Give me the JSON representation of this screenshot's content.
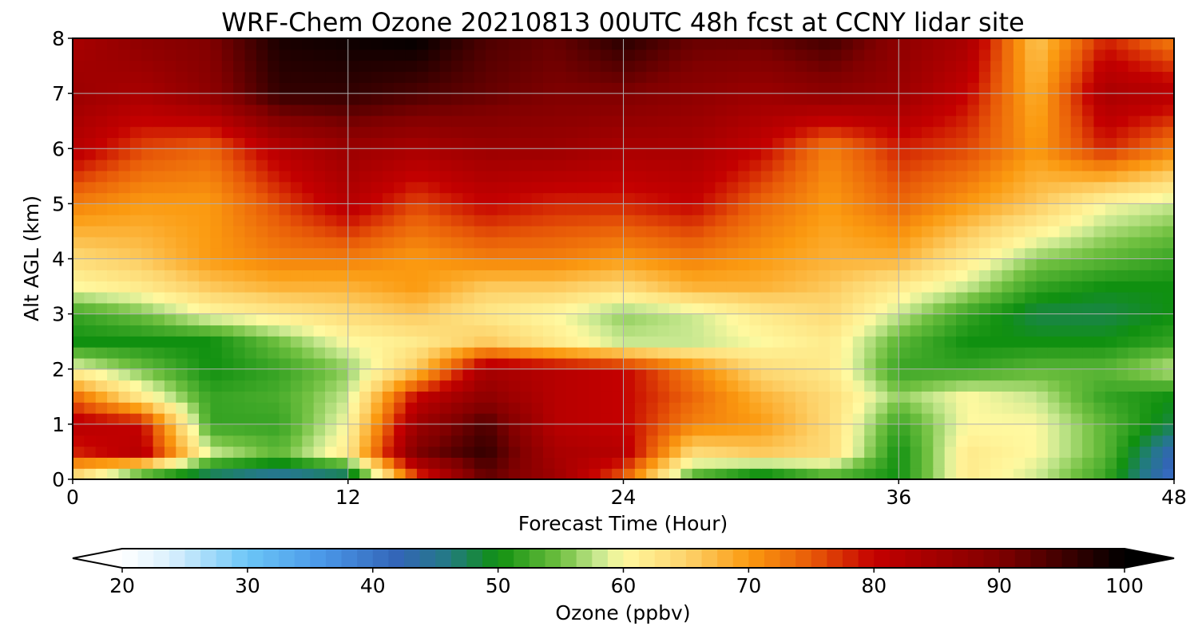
{
  "chart_data": {
    "type": "heatmap",
    "title": "WRF-Chem Ozone  20210813 00UTC 48h fcst at CCNY lidar site",
    "xlabel": "Forecast Time (Hour)",
    "ylabel": "Alt AGL (km)",
    "xlim": [
      0,
      48
    ],
    "ylim": [
      0,
      8
    ],
    "x_ticks": [
      "0",
      "12",
      "24",
      "36",
      "48"
    ],
    "y_ticks": [
      "0",
      "1",
      "2",
      "3",
      "4",
      "5",
      "6",
      "7",
      "8"
    ],
    "grid": true,
    "x": [
      0,
      3,
      6,
      9,
      12,
      15,
      18,
      21,
      24,
      27,
      30,
      33,
      36,
      39,
      42,
      45,
      48
    ],
    "y": [
      0,
      0.5,
      1,
      1.5,
      2,
      2.5,
      3,
      3.5,
      4,
      5,
      6,
      7,
      8
    ],
    "z": [
      [
        62,
        48,
        45,
        43,
        44,
        75,
        92,
        86,
        74,
        52,
        46,
        52,
        50,
        62,
        58,
        52,
        40
      ],
      [
        78,
        82,
        58,
        54,
        62,
        90,
        96,
        84,
        82,
        64,
        66,
        64,
        50,
        62,
        60,
        54,
        42
      ],
      [
        82,
        80,
        52,
        52,
        60,
        86,
        94,
        82,
        80,
        72,
        70,
        64,
        52,
        60,
        60,
        54,
        48
      ],
      [
        74,
        62,
        52,
        53,
        58,
        80,
        88,
        82,
        80,
        74,
        68,
        64,
        56,
        60,
        58,
        52,
        50
      ],
      [
        60,
        55,
        50,
        52,
        56,
        66,
        84,
        82,
        80,
        72,
        64,
        62,
        52,
        52,
        54,
        54,
        58
      ],
      [
        50,
        50,
        50,
        55,
        60,
        62,
        66,
        62,
        58,
        58,
        60,
        62,
        54,
        50,
        50,
        50,
        52
      ],
      [
        52,
        55,
        60,
        62,
        64,
        66,
        62,
        60,
        56,
        58,
        62,
        64,
        58,
        52,
        48,
        48,
        50
      ],
      [
        60,
        62,
        66,
        68,
        68,
        70,
        66,
        66,
        64,
        68,
        68,
        66,
        62,
        58,
        52,
        50,
        50
      ],
      [
        64,
        66,
        70,
        72,
        72,
        70,
        72,
        72,
        70,
        72,
        70,
        68,
        68,
        62,
        56,
        54,
        52
      ],
      [
        72,
        70,
        70,
        76,
        82,
        76,
        80,
        78,
        78,
        80,
        74,
        70,
        74,
        70,
        66,
        60,
        58
      ],
      [
        82,
        76,
        74,
        82,
        86,
        84,
        86,
        86,
        84,
        84,
        80,
        72,
        78,
        76,
        70,
        78,
        72
      ],
      [
        86,
        84,
        88,
        96,
        96,
        94,
        92,
        90,
        90,
        88,
        86,
        88,
        86,
        80,
        68,
        84,
        82
      ],
      [
        84,
        88,
        90,
        98,
        99,
        100,
        94,
        92,
        97,
        92,
        92,
        95,
        88,
        84,
        66,
        78,
        72
      ]
    ],
    "colorbar": {
      "label": "Ozone  (ppbv)",
      "min": 20,
      "max": 100,
      "ticks": [
        "20",
        "30",
        "40",
        "50",
        "60",
        "70",
        "80",
        "90",
        "100"
      ],
      "extend": "both",
      "stops": [
        {
          "v": 20,
          "c": "#ffffff"
        },
        {
          "v": 24,
          "c": "#d8effd"
        },
        {
          "v": 30,
          "c": "#6cc6f7"
        },
        {
          "v": 36,
          "c": "#4a97e8"
        },
        {
          "v": 42,
          "c": "#3365b7"
        },
        {
          "v": 46,
          "c": "#237a84"
        },
        {
          "v": 50,
          "c": "#109010"
        },
        {
          "v": 55,
          "c": "#70c040"
        },
        {
          "v": 58,
          "c": "#c8e890"
        },
        {
          "v": 60,
          "c": "#fff9a0"
        },
        {
          "v": 65,
          "c": "#fdd36c"
        },
        {
          "v": 70,
          "c": "#fb9a10"
        },
        {
          "v": 75,
          "c": "#e85a08"
        },
        {
          "v": 80,
          "c": "#c40000"
        },
        {
          "v": 90,
          "c": "#800000"
        },
        {
          "v": 100,
          "c": "#000000"
        }
      ]
    }
  }
}
